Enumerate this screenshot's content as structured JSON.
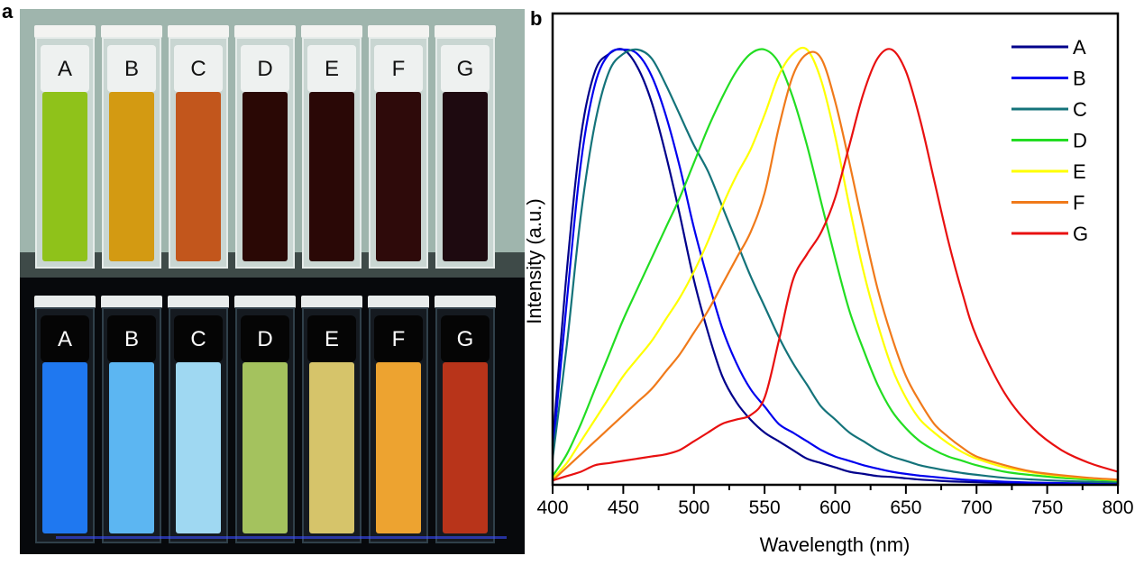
{
  "panels": {
    "a": "a",
    "b": "b"
  },
  "photo": {
    "vials": [
      "A",
      "B",
      "C",
      "D",
      "E",
      "F",
      "G"
    ],
    "daylight_colors": [
      "#8fc21a",
      "#d39a12",
      "#c2561c",
      "#2a0805",
      "#2a0806",
      "#2e0a0a",
      "#1e0a10"
    ],
    "uv_colors": [
      "#1f78f0",
      "#5cb6f2",
      "#9fd8f2",
      "#a4c25e",
      "#d6c46a",
      "#eda330",
      "#b8341a"
    ]
  },
  "chart_data": {
    "type": "line",
    "title": "",
    "xlabel": "Wavelength (nm)",
    "ylabel": "Intensity (a.u.)",
    "xlim": [
      400,
      800
    ],
    "ylim": [
      0,
      1.1
    ],
    "xticks": [
      400,
      450,
      500,
      550,
      600,
      650,
      700,
      750,
      800
    ],
    "x_minor_step": 25,
    "yticks": [],
    "grid": false,
    "legend_position": "top-right",
    "x": [
      400,
      410,
      420,
      430,
      440,
      450,
      460,
      470,
      480,
      490,
      500,
      510,
      520,
      530,
      540,
      550,
      560,
      570,
      580,
      590,
      600,
      610,
      620,
      630,
      640,
      650,
      660,
      670,
      680,
      690,
      700,
      720,
      740,
      760,
      780,
      800
    ],
    "series": [
      {
        "name": "A",
        "color": "#00008b",
        "values": [
          0.09,
          0.49,
          0.8,
          0.95,
          0.99,
          1.0,
          0.96,
          0.88,
          0.76,
          0.62,
          0.47,
          0.35,
          0.25,
          0.19,
          0.15,
          0.12,
          0.1,
          0.08,
          0.06,
          0.05,
          0.04,
          0.03,
          0.025,
          0.02,
          0.018,
          0.015,
          0.012,
          0.01,
          0.008,
          0.007,
          0.006,
          0.004,
          0.003,
          0.002,
          0.001,
          0.0
        ]
      },
      {
        "name": "B",
        "color": "#0000ee",
        "values": [
          0.07,
          0.42,
          0.74,
          0.92,
          0.99,
          1.0,
          0.99,
          0.94,
          0.85,
          0.73,
          0.59,
          0.47,
          0.36,
          0.28,
          0.22,
          0.18,
          0.14,
          0.12,
          0.1,
          0.08,
          0.065,
          0.055,
          0.045,
          0.037,
          0.03,
          0.025,
          0.021,
          0.018,
          0.015,
          0.012,
          0.01,
          0.007,
          0.005,
          0.004,
          0.003,
          0.002
        ]
      },
      {
        "name": "C",
        "color": "#14737a",
        "values": [
          0.06,
          0.32,
          0.62,
          0.83,
          0.95,
          0.99,
          1.0,
          0.98,
          0.92,
          0.85,
          0.78,
          0.72,
          0.64,
          0.56,
          0.48,
          0.41,
          0.34,
          0.28,
          0.23,
          0.18,
          0.15,
          0.12,
          0.1,
          0.08,
          0.065,
          0.055,
          0.045,
          0.038,
          0.032,
          0.027,
          0.023,
          0.016,
          0.012,
          0.009,
          0.007,
          0.006
        ]
      },
      {
        "name": "D",
        "color": "#22dd22",
        "values": [
          0.02,
          0.07,
          0.14,
          0.22,
          0.3,
          0.38,
          0.45,
          0.52,
          0.59,
          0.66,
          0.74,
          0.82,
          0.89,
          0.95,
          0.99,
          1.0,
          0.97,
          0.89,
          0.78,
          0.65,
          0.52,
          0.4,
          0.31,
          0.23,
          0.17,
          0.13,
          0.1,
          0.08,
          0.065,
          0.055,
          0.045,
          0.03,
          0.022,
          0.016,
          0.012,
          0.009
        ]
      },
      {
        "name": "E",
        "color": "#ffff00",
        "values": [
          0.015,
          0.05,
          0.1,
          0.15,
          0.2,
          0.25,
          0.29,
          0.33,
          0.38,
          0.43,
          0.49,
          0.56,
          0.64,
          0.71,
          0.77,
          0.85,
          0.94,
          0.99,
          1.0,
          0.93,
          0.8,
          0.64,
          0.49,
          0.37,
          0.27,
          0.2,
          0.15,
          0.12,
          0.095,
          0.075,
          0.06,
          0.04,
          0.028,
          0.02,
          0.015,
          0.011
        ]
      },
      {
        "name": "F",
        "color": "#f07a1a",
        "values": [
          0.01,
          0.04,
          0.07,
          0.1,
          0.13,
          0.16,
          0.19,
          0.22,
          0.26,
          0.3,
          0.35,
          0.4,
          0.46,
          0.52,
          0.58,
          0.67,
          0.82,
          0.94,
          0.99,
          0.98,
          0.88,
          0.74,
          0.59,
          0.45,
          0.34,
          0.25,
          0.19,
          0.14,
          0.11,
          0.085,
          0.065,
          0.045,
          0.03,
          0.022,
          0.016,
          0.012
        ]
      },
      {
        "name": "G",
        "color": "#e81010",
        "values": [
          0.01,
          0.02,
          0.03,
          0.045,
          0.05,
          0.055,
          0.06,
          0.065,
          0.07,
          0.08,
          0.1,
          0.12,
          0.14,
          0.15,
          0.16,
          0.2,
          0.33,
          0.47,
          0.53,
          0.58,
          0.66,
          0.78,
          0.9,
          0.98,
          1.0,
          0.95,
          0.84,
          0.7,
          0.56,
          0.44,
          0.34,
          0.21,
          0.13,
          0.08,
          0.05,
          0.03
        ]
      }
    ]
  }
}
